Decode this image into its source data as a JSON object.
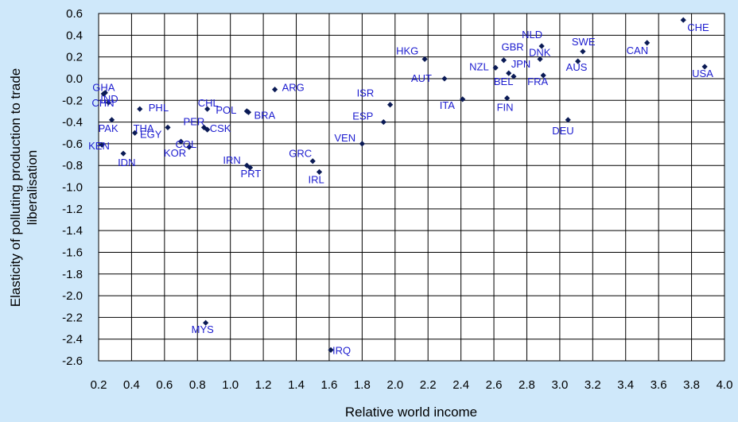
{
  "chart_data": {
    "type": "scatter",
    "title": "",
    "xlabel": "Relative world income",
    "ylabel": "Elasticity of polluting production to trade liberalisation",
    "ylabel_lines": [
      "Elasticity of polluting production to trade",
      "liberalisation"
    ],
    "xlim": [
      0.2,
      4.0
    ],
    "ylim": [
      -2.6,
      0.6
    ],
    "x_ticks": [
      "0.2",
      "0.4",
      "0.6",
      "0.8",
      "1.0",
      "1.2",
      "1.4",
      "1.6",
      "1.8",
      "2.0",
      "2.2",
      "2.4",
      "2.6",
      "2.8",
      "3.0",
      "3.2",
      "3.4",
      "3.6",
      "3.8",
      "4.0"
    ],
    "y_ticks": [
      "0.6",
      "0.4",
      "0.2",
      "0.0",
      "-0.2",
      "-0.4",
      "-0.6",
      "-0.8",
      "-1.0",
      "-1.2",
      "-1.4",
      "-1.6",
      "-1.8",
      "-2.0",
      "-2.2",
      "-2.4",
      "-2.6"
    ],
    "grid": true,
    "colors": {
      "background": "#cfe8fa",
      "plot_area": "#ffffff",
      "marker": "#0a1a55",
      "label": "#1c1ccf",
      "grid": "#000000"
    },
    "points": [
      {
        "label": "GHA",
        "x": 0.24,
        "y": -0.13
      },
      {
        "label": "IND",
        "x": 0.23,
        "y": -0.14
      },
      {
        "label": "CHN",
        "x": 0.26,
        "y": -0.22
      },
      {
        "label": "PAK",
        "x": 0.28,
        "y": -0.38
      },
      {
        "label": "KEN",
        "x": 0.22,
        "y": -0.61
      },
      {
        "label": "IDN",
        "x": 0.35,
        "y": -0.69
      },
      {
        "label": "THA",
        "x": 0.42,
        "y": -0.5
      },
      {
        "label": "PHL",
        "x": 0.45,
        "y": -0.28
      },
      {
        "label": "EGY",
        "x": 0.62,
        "y": -0.45
      },
      {
        "label": "COL",
        "x": 0.7,
        "y": -0.58
      },
      {
        "label": "KOR",
        "x": 0.75,
        "y": -0.63
      },
      {
        "label": "PER",
        "x": 0.84,
        "y": -0.45
      },
      {
        "label": "CSK",
        "x": 0.86,
        "y": -0.47
      },
      {
        "label": "CHL",
        "x": 0.86,
        "y": -0.28
      },
      {
        "label": "MYS",
        "x": 0.85,
        "y": -2.25
      },
      {
        "label": "POL",
        "x": 1.1,
        "y": -0.3
      },
      {
        "label": "BRA",
        "x": 1.11,
        "y": -0.31
      },
      {
        "label": "IRN",
        "x": 1.1,
        "y": -0.8
      },
      {
        "label": "PRT",
        "x": 1.12,
        "y": -0.82
      },
      {
        "label": "ARG",
        "x": 1.27,
        "y": -0.1
      },
      {
        "label": "GRC",
        "x": 1.5,
        "y": -0.76
      },
      {
        "label": "IRL",
        "x": 1.54,
        "y": -0.86
      },
      {
        "label": "IRQ",
        "x": 1.61,
        "y": -2.5
      },
      {
        "label": "VEN",
        "x": 1.8,
        "y": -0.6
      },
      {
        "label": "ESP",
        "x": 1.93,
        "y": -0.4
      },
      {
        "label": "ISR",
        "x": 1.97,
        "y": -0.24
      },
      {
        "label": "HKG",
        "x": 2.18,
        "y": 0.18
      },
      {
        "label": "AUT",
        "x": 2.3,
        "y": 0.0
      },
      {
        "label": "ITA",
        "x": 2.41,
        "y": -0.19
      },
      {
        "label": "NZL",
        "x": 2.61,
        "y": 0.1
      },
      {
        "label": "GBR",
        "x": 2.66,
        "y": 0.17
      },
      {
        "label": "JPN",
        "x": 2.69,
        "y": 0.05
      },
      {
        "label": "BEL",
        "x": 2.72,
        "y": 0.02
      },
      {
        "label": "FIN",
        "x": 2.68,
        "y": -0.18
      },
      {
        "label": "NLD",
        "x": 2.89,
        "y": 0.3
      },
      {
        "label": "DNK",
        "x": 2.88,
        "y": 0.18
      },
      {
        "label": "FRA",
        "x": 2.9,
        "y": 0.03
      },
      {
        "label": "DEU",
        "x": 3.05,
        "y": -0.38
      },
      {
        "label": "SWE",
        "x": 3.14,
        "y": 0.25
      },
      {
        "label": "AUS",
        "x": 3.11,
        "y": 0.16
      },
      {
        "label": "CAN",
        "x": 3.53,
        "y": 0.33
      },
      {
        "label": "CHE",
        "x": 3.75,
        "y": 0.54
      },
      {
        "label": "USA",
        "x": 3.88,
        "y": 0.11
      }
    ]
  }
}
